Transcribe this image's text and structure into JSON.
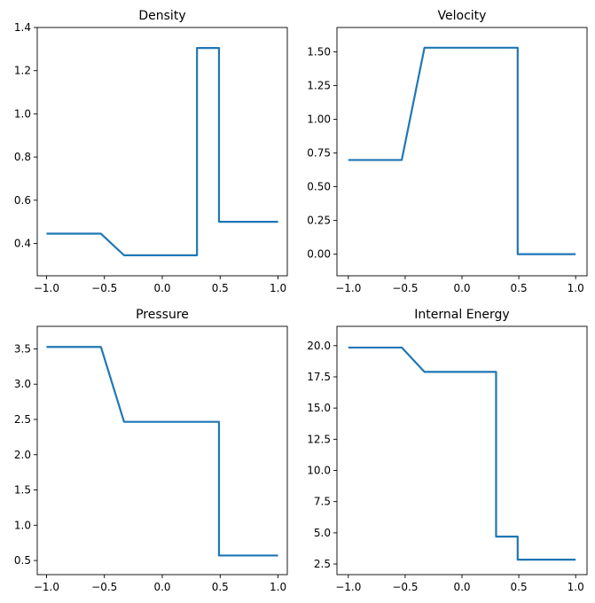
{
  "colors": {
    "line": "#1f77b4",
    "axes": "#000000",
    "background": "#ffffff"
  },
  "chart_data": [
    {
      "type": "line",
      "title": "Density",
      "xlim": [
        -1.08,
        1.08
      ],
      "ylim": [
        0.25,
        1.4
      ],
      "xticks": [
        -1.0,
        -0.5,
        0.0,
        0.5,
        1.0
      ],
      "xtick_labels": [
        "−1.0",
        "−0.5",
        "0.0",
        "0.5",
        "1.0"
      ],
      "yticks": [
        0.4,
        0.6,
        0.8,
        1.0,
        1.2,
        1.4
      ],
      "ytick_labels": [
        "0.4",
        "0.6",
        "0.8",
        "1.0",
        "1.2",
        "1.4"
      ],
      "grid": false,
      "series": [
        {
          "x": [
            -1.0,
            -0.53,
            -0.33,
            0.3,
            0.3,
            0.49,
            0.49,
            1.0
          ],
          "y": [
            0.445,
            0.445,
            0.345,
            0.345,
            1.305,
            1.305,
            0.5,
            0.5
          ]
        }
      ]
    },
    {
      "type": "line",
      "title": "Velocity",
      "xlim": [
        -1.1,
        1.1
      ],
      "ylim": [
        -0.16,
        1.68
      ],
      "xticks": [
        -1.0,
        -0.5,
        0.0,
        0.5,
        1.0
      ],
      "xtick_labels": [
        "−1.0",
        "−0.5",
        "0.0",
        "0.5",
        "1.0"
      ],
      "yticks": [
        0.0,
        0.25,
        0.5,
        0.75,
        1.0,
        1.25,
        1.5
      ],
      "ytick_labels": [
        "0.00",
        "0.25",
        "0.50",
        "0.75",
        "1.00",
        "1.25",
        "1.50"
      ],
      "grid": false,
      "series": [
        {
          "x": [
            -1.0,
            -0.53,
            -0.33,
            0.49,
            0.49,
            1.0
          ],
          "y": [
            0.698,
            0.698,
            1.53,
            1.53,
            0.0,
            0.0
          ]
        }
      ]
    },
    {
      "type": "line",
      "title": "Pressure",
      "xlim": [
        -1.08,
        1.08
      ],
      "ylim": [
        0.3,
        3.82
      ],
      "xticks": [
        -1.0,
        -0.5,
        0.0,
        0.5,
        1.0
      ],
      "xtick_labels": [
        "−1.0",
        "−0.5",
        "0.0",
        "0.5",
        "1.0"
      ],
      "yticks": [
        0.5,
        1.0,
        1.5,
        2.0,
        2.5,
        3.0,
        3.5
      ],
      "ytick_labels": [
        "0.5",
        "1.0",
        "1.5",
        "2.0",
        "2.5",
        "3.0",
        "3.5"
      ],
      "grid": false,
      "series": [
        {
          "x": [
            -1.0,
            -0.53,
            -0.33,
            0.49,
            0.49,
            1.0
          ],
          "y": [
            3.528,
            3.528,
            2.466,
            2.466,
            0.571,
            0.571
          ]
        }
      ]
    },
    {
      "type": "line",
      "title": "Internal Energy",
      "xlim": [
        -1.1,
        1.1
      ],
      "ylim": [
        1.65,
        21.55
      ],
      "xticks": [
        -1.0,
        -0.5,
        0.0,
        0.5,
        1.0
      ],
      "xtick_labels": [
        "−1.0",
        "−0.5",
        "0.0",
        "0.5",
        "1.0"
      ],
      "yticks": [
        2.5,
        5.0,
        7.5,
        10.0,
        12.5,
        15.0,
        17.5,
        20.0
      ],
      "ytick_labels": [
        "2.5",
        "5.0",
        "7.5",
        "10.0",
        "12.5",
        "15.0",
        "17.5",
        "20.0"
      ],
      "grid": false,
      "series": [
        {
          "x": [
            -1.0,
            -0.53,
            -0.33,
            0.3,
            0.3,
            0.49,
            0.49,
            1.0
          ],
          "y": [
            19.85,
            19.85,
            17.9,
            17.9,
            4.7,
            4.7,
            2.85,
            2.85
          ]
        }
      ]
    }
  ]
}
